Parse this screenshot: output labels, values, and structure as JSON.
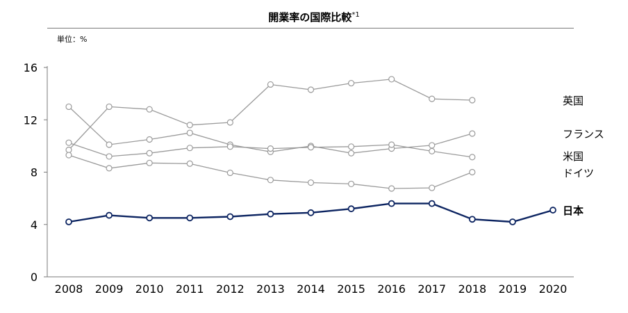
{
  "chart_data": {
    "type": "line",
    "title": "開業率の国際比較",
    "title_footnote": "*1",
    "unit_label": "単位：%",
    "xlabel": "",
    "ylabel": "",
    "x": [
      2008,
      2009,
      2010,
      2011,
      2012,
      2013,
      2014,
      2015,
      2016,
      2017,
      2018,
      2019,
      2020
    ],
    "ylim": [
      0,
      16
    ],
    "yticks": [
      0,
      4,
      8,
      12,
      16
    ],
    "grid": false,
    "legend": "inline-right",
    "series": [
      {
        "name": "英国",
        "color": "#9a9a9a",
        "values": [
          9.7,
          13.0,
          12.8,
          11.6,
          11.8,
          14.7,
          14.3,
          14.8,
          15.1,
          13.6,
          13.5,
          null,
          null
        ]
      },
      {
        "name": "フランス",
        "color": "#9a9a9a",
        "values": [
          9.3,
          8.3,
          8.7,
          8.65,
          7.95,
          7.4,
          7.2,
          7.1,
          6.75,
          6.8,
          8.0,
          null,
          null
        ]
      },
      {
        "name": "米国",
        "color": "#9a9a9a",
        "values": [
          13.0,
          10.1,
          10.5,
          11.0,
          10.1,
          9.55,
          10.0,
          9.45,
          9.8,
          10.05,
          10.95,
          null,
          null
        ]
      },
      {
        "name": "ドイツ",
        "color": "#9a9a9a",
        "values": [
          10.25,
          9.2,
          9.45,
          9.85,
          9.95,
          9.8,
          9.9,
          9.95,
          10.1,
          9.6,
          9.15,
          null,
          null
        ]
      },
      {
        "name": "日本",
        "color": "#0c2461",
        "bold": true,
        "values": [
          4.2,
          4.7,
          4.5,
          4.5,
          4.6,
          4.8,
          4.9,
          5.2,
          5.6,
          5.6,
          4.4,
          4.2,
          5.1
        ]
      }
    ]
  }
}
